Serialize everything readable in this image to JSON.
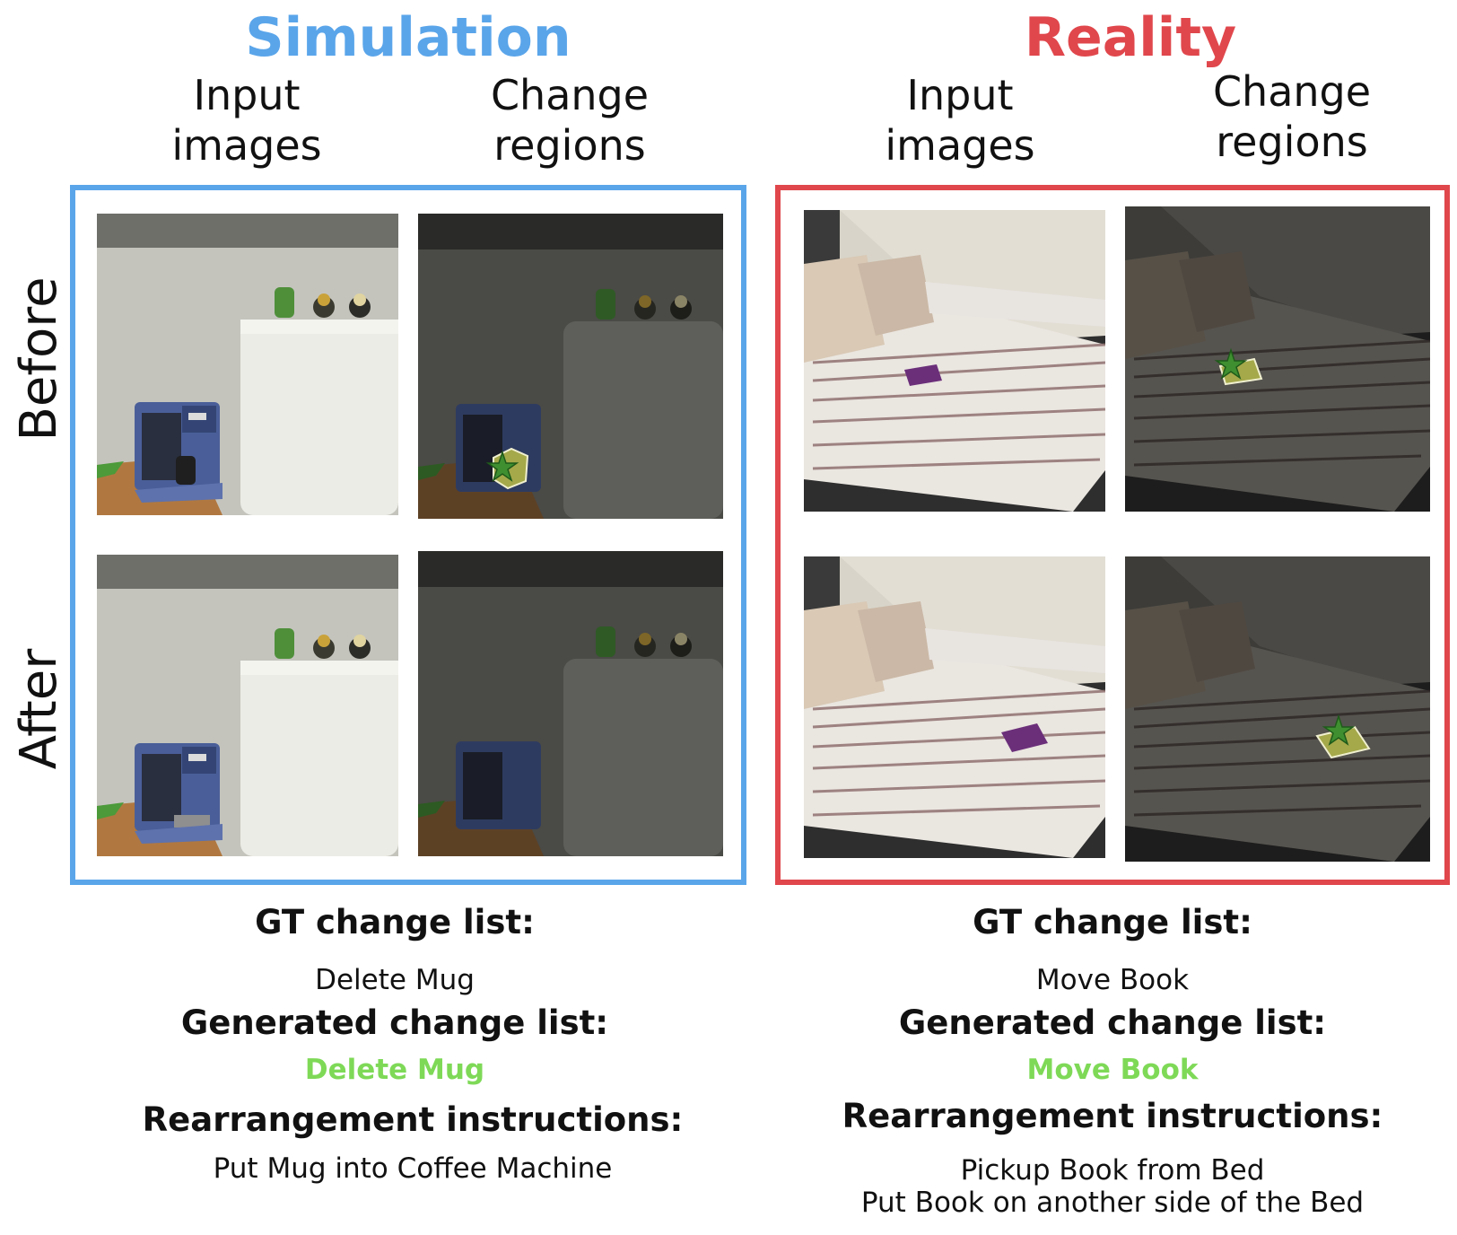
{
  "colors": {
    "simulation": "#5aa5ea",
    "reality": "#e0474c",
    "generated": "#7ed957"
  },
  "simulation": {
    "title": "Simulation",
    "col_input": "Input\nimages",
    "col_change": "Change\nregions",
    "gt_heading": "GT change list:",
    "gt_items": [
      "Delete Mug"
    ],
    "gen_heading": "Generated change list:",
    "gen_items": [
      "Delete Mug"
    ],
    "instr_heading": "Rearrangement instructions:",
    "instr_items": [
      "Put Mug into Coffee Machine"
    ]
  },
  "reality": {
    "title": "Reality",
    "col_input": "Input\nimages",
    "col_change": "Change\nregions",
    "gt_heading": "GT change list:",
    "gt_items": [
      "Move Book"
    ],
    "gen_heading": "Generated change list:",
    "gen_items": [
      "Move Book"
    ],
    "instr_heading": "Rearrangement instructions:",
    "instr_items": [
      "Pickup Book from Bed",
      "Put Book on another side of the Bed"
    ]
  },
  "rows": {
    "before": "Before",
    "after": "After"
  }
}
